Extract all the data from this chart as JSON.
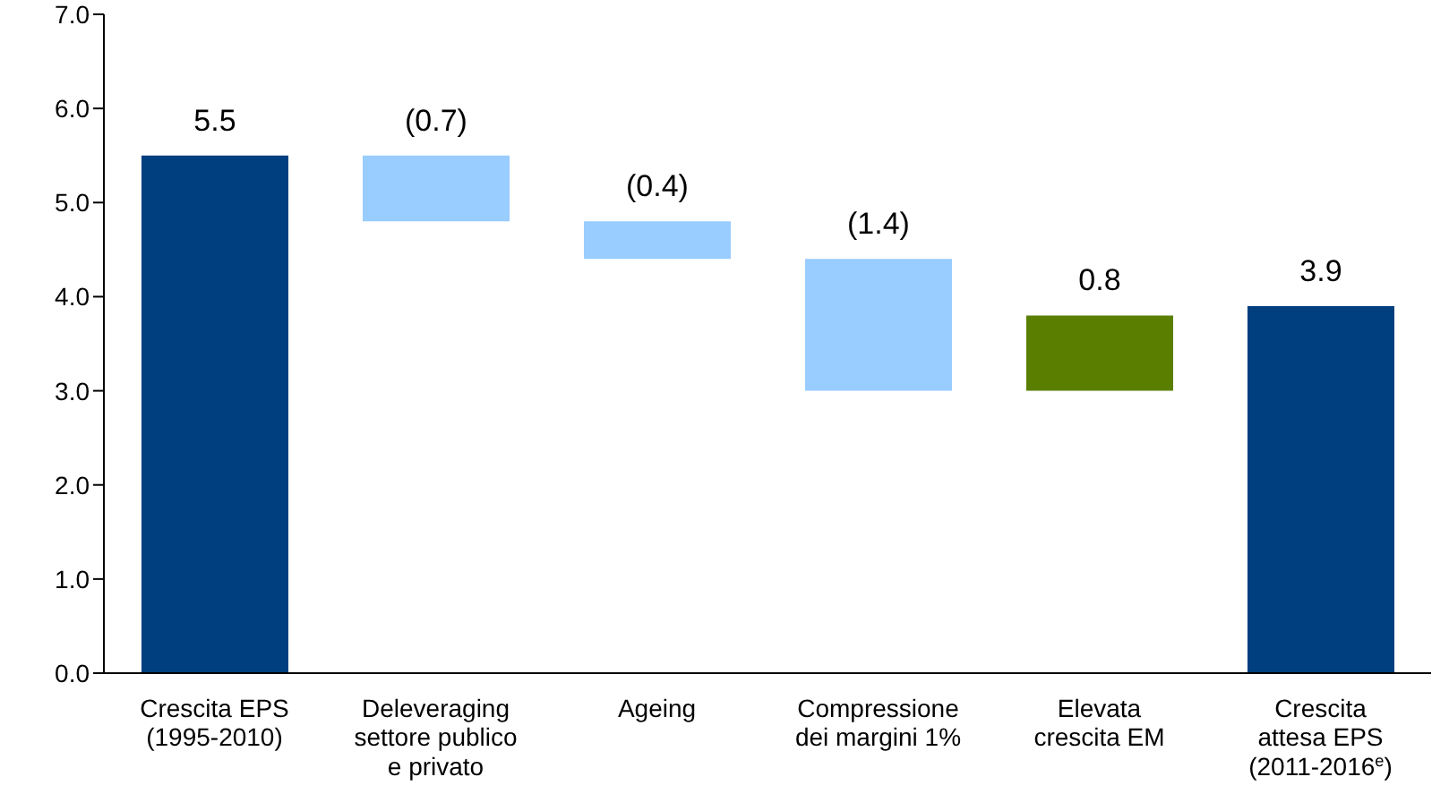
{
  "chart_data": {
    "type": "bar",
    "categories": [
      "Crescita EPS (1995-2010)",
      "Deleveraging settore publico e privato",
      "Ageing",
      "Compressione dei margini 1%",
      "Elevata crescita EM",
      "Crescita attesa EPS (2011-2016$^{e}$)"
    ],
    "values": [
      5.5,
      -0.7,
      -0.4,
      -1.4,
      0.8,
      3.9
    ],
    "base": [
      0,
      5.5,
      4.8,
      4.4,
      3.0,
      0
    ],
    "colors": [
      "#003f7f",
      "#99ccff",
      "#99ccff",
      "#99ccff",
      "#5a7f00",
      "#003f7f"
    ],
    "value_labels": [
      "5.5",
      "(0.7)",
      "(0.4)",
      "(1.4)",
      "0.8",
      "3.9"
    ],
    "ylim": [
      0,
      7
    ],
    "yticks": [
      {
        "value": 0,
        "label": "0.0"
      },
      {
        "value": 1,
        "label": "1.0"
      },
      {
        "value": 2,
        "label": "2.0"
      },
      {
        "value": 3,
        "label": "3.0"
      },
      {
        "value": 4,
        "label": "4.0"
      },
      {
        "value": 5,
        "label": "5.0"
      },
      {
        "value": 6,
        "label": "6.0"
      },
      {
        "value": 7,
        "label": "7.0"
      }
    ],
    "grid": false,
    "legend": false
  }
}
